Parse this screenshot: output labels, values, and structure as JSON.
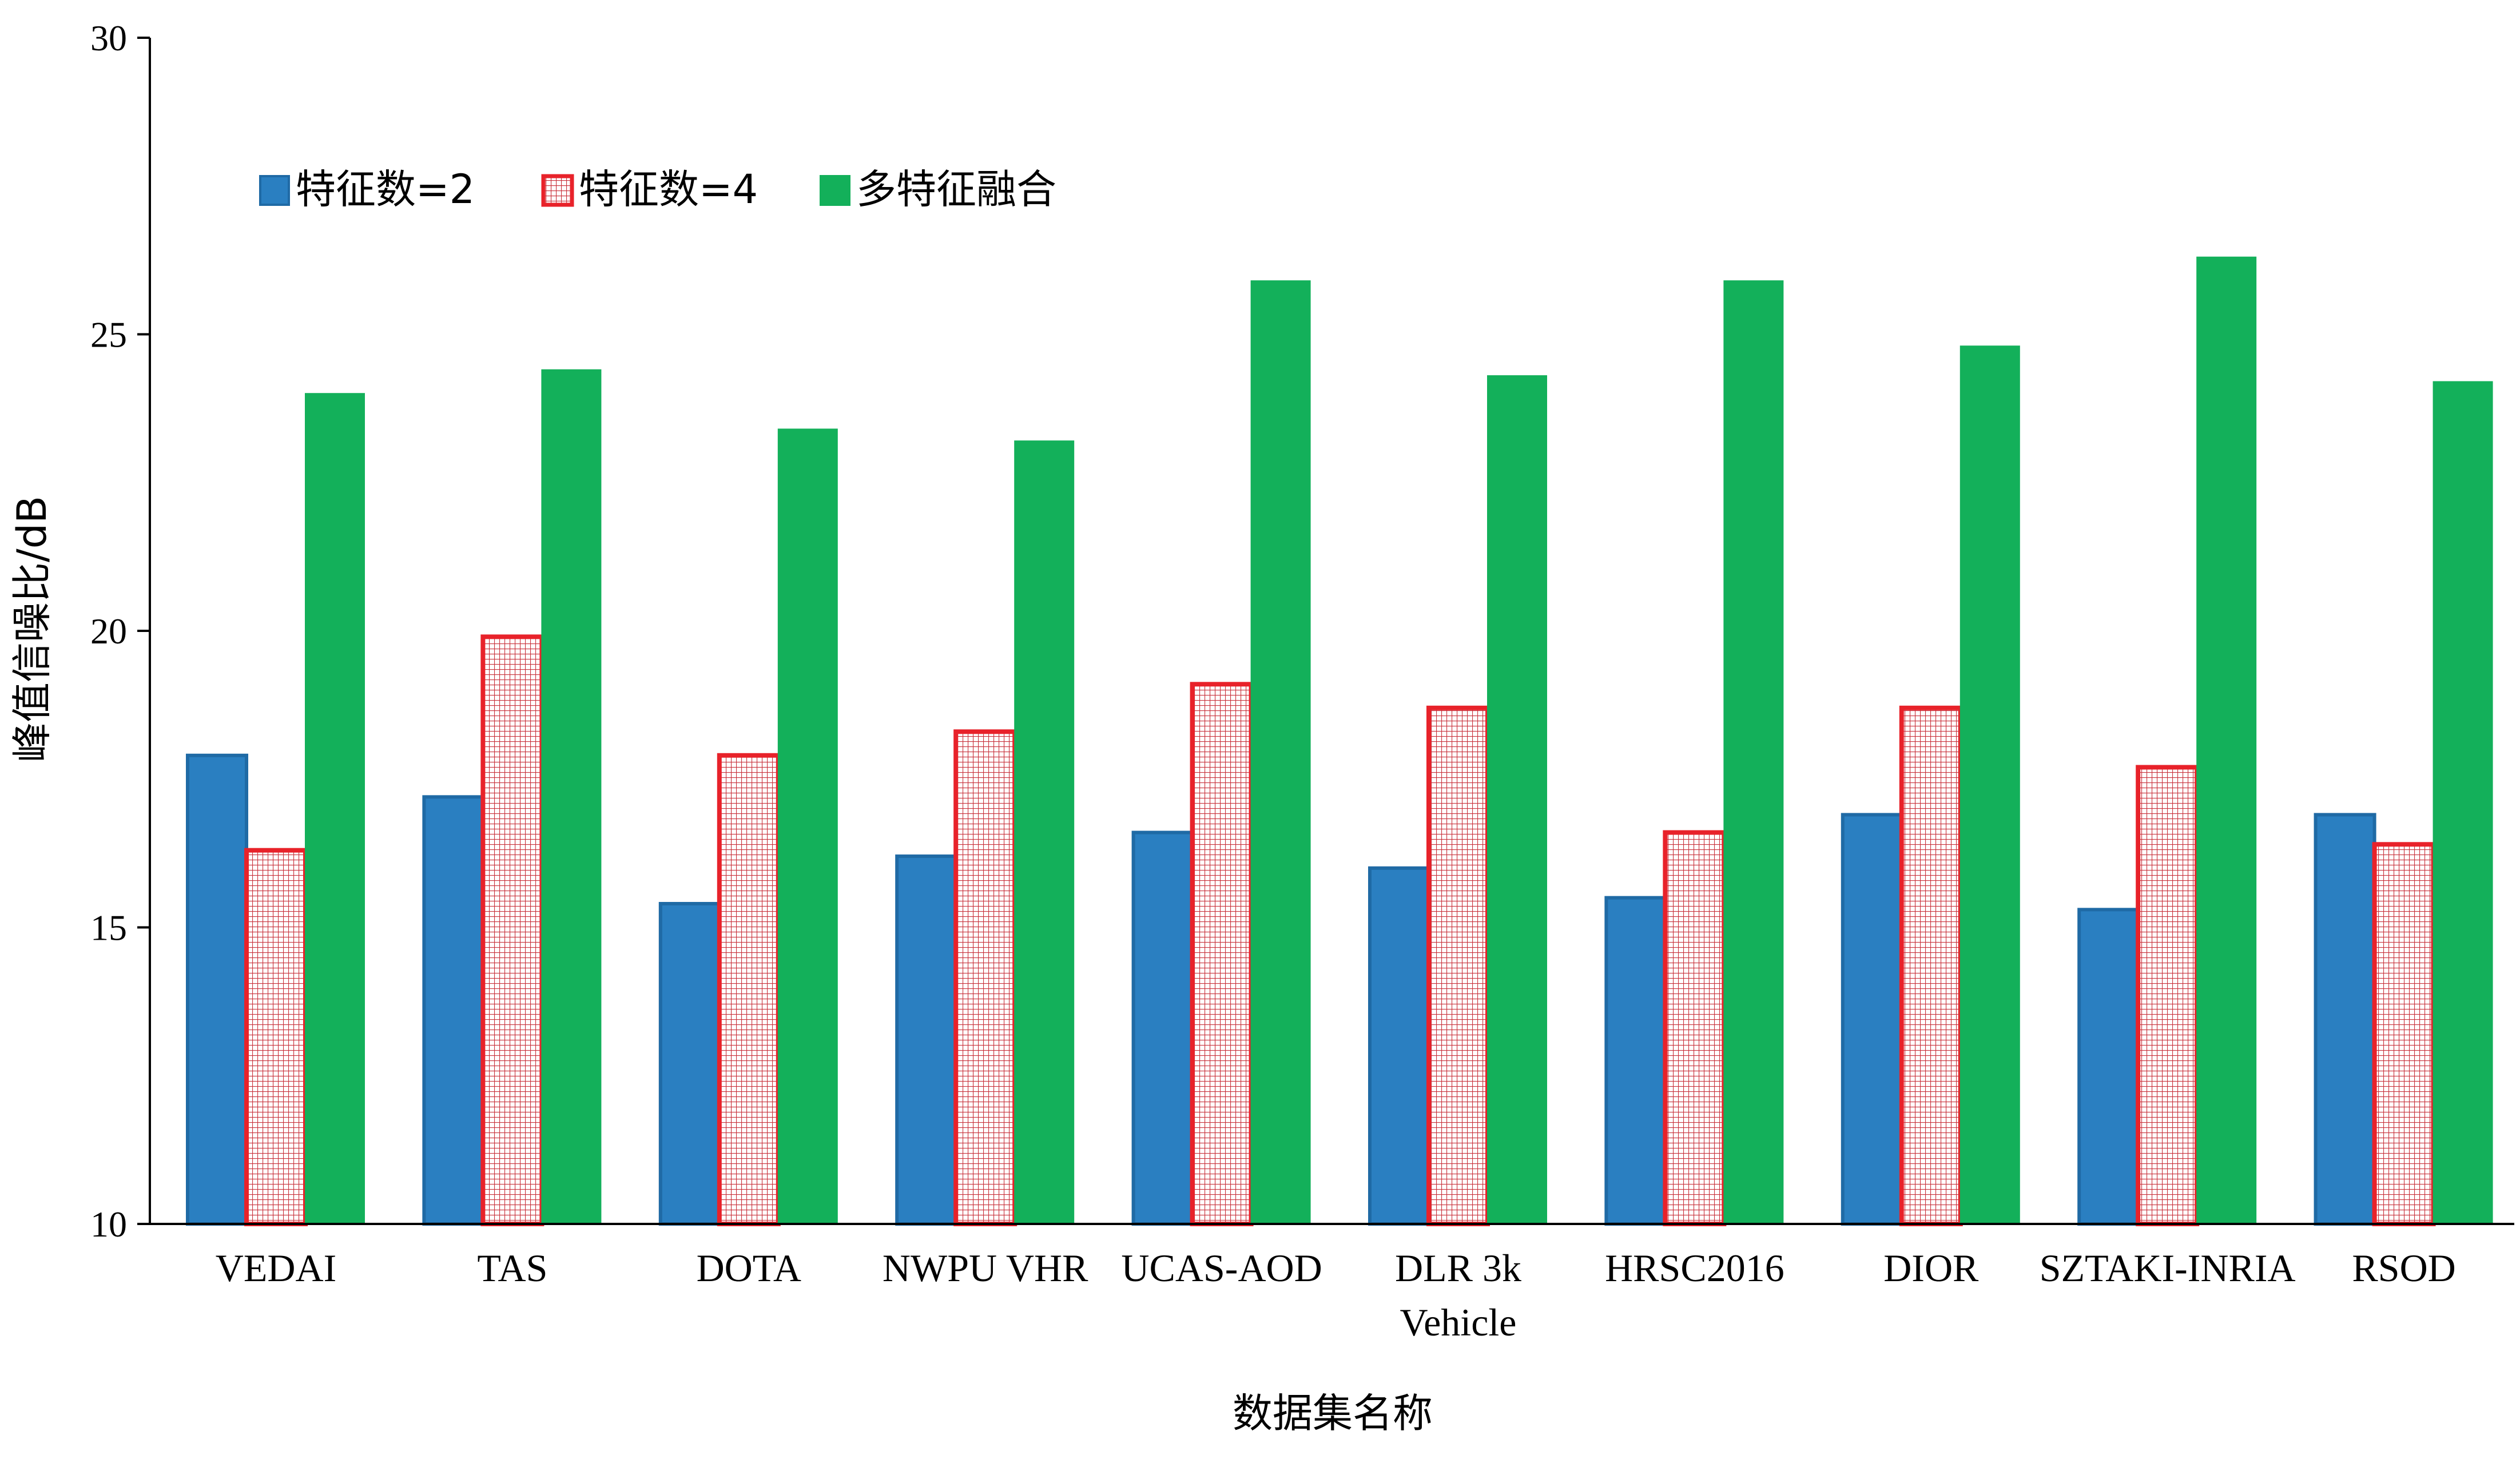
{
  "chart_data": {
    "type": "bar",
    "categories": [
      "VEDAI",
      "TAS",
      "DOTA",
      "NWPU VHR",
      "UCAS-AOD",
      "DLR 3k Vehicle",
      "HRSC2016",
      "DIOR",
      "SZTAKI-INRIA",
      "RSOD"
    ],
    "category_lines": [
      [
        "VEDAI"
      ],
      [
        "TAS"
      ],
      [
        "DOTA"
      ],
      [
        "NWPU VHR"
      ],
      [
        "UCAS-AOD"
      ],
      [
        "DLR 3k",
        "Vehicle"
      ],
      [
        "HRSC2016"
      ],
      [
        "DIOR"
      ],
      [
        "SZTAKI-INRIA"
      ],
      [
        "RSOD"
      ]
    ],
    "series": [
      {
        "name": "特征数=2",
        "color": "#2a7fc1",
        "values": [
          17.9,
          17.2,
          15.4,
          16.2,
          16.6,
          16.0,
          15.5,
          16.9,
          15.3,
          16.9
        ]
      },
      {
        "name": "特征数=4",
        "color": "#e8222a",
        "values": [
          16.3,
          19.9,
          17.9,
          18.3,
          19.1,
          18.7,
          16.6,
          18.7,
          17.7,
          16.4
        ]
      },
      {
        "name": "多特征融合",
        "color": "#13b05a",
        "values": [
          24.0,
          24.4,
          23.4,
          23.2,
          25.9,
          24.3,
          25.9,
          24.8,
          26.3,
          24.2
        ]
      }
    ],
    "xlabel": "数据集名称",
    "ylabel": "峰值信噪比/dB",
    "ylim": [
      10,
      30
    ],
    "yticks": [
      10,
      15,
      20,
      25,
      30
    ],
    "legend_position": "top-left",
    "grid": false
  }
}
